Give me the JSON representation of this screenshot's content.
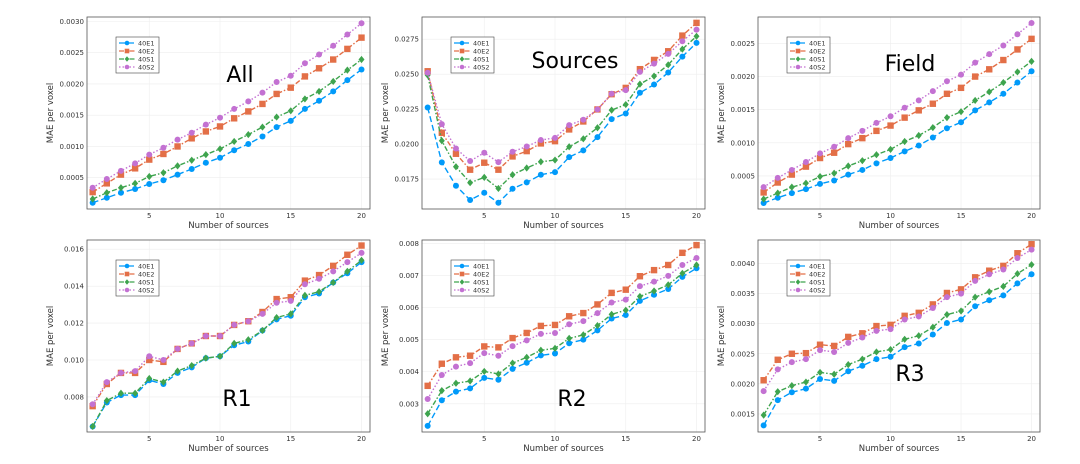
{
  "chart_data": [
    {
      "type": "line",
      "title": "All",
      "xlabel": "Number of sources",
      "ylabel": "MAE per voxel",
      "xlim": [
        0.6,
        20.6
      ],
      "ylim": [
        0,
        0.00307
      ],
      "xticks": [
        5,
        10,
        15,
        20
      ],
      "yticks": [
        0.0005,
        0.001,
        0.0015,
        0.002,
        0.0025,
        0.003
      ],
      "ytick_labels": [
        "0.0005",
        "0.0010",
        "0.0015",
        "0.0020",
        "0.0025",
        "0.0030"
      ],
      "grid": true,
      "legend_position": "top-left",
      "x": [
        1,
        2,
        3,
        4,
        5,
        6,
        7,
        8,
        9,
        10,
        11,
        12,
        13,
        14,
        15,
        16,
        17,
        18,
        19,
        20
      ],
      "series": [
        {
          "name": "40E1",
          "values": [
            0.0001,
            0.00018,
            0.00026,
            0.00032,
            0.0004,
            0.00046,
            0.00055,
            0.00064,
            0.00074,
            0.00082,
            0.00094,
            0.00104,
            0.00116,
            0.00131,
            0.00141,
            0.0016,
            0.00173,
            0.00188,
            0.00206,
            0.00223
          ]
        },
        {
          "name": "40E2",
          "values": [
            0.00027,
            0.00041,
            0.00055,
            0.00065,
            0.00079,
            0.00088,
            0.001,
            0.00113,
            0.00124,
            0.00132,
            0.00145,
            0.00156,
            0.00168,
            0.00184,
            0.00194,
            0.00212,
            0.00225,
            0.00239,
            0.00256,
            0.00274
          ]
        },
        {
          "name": "40S1",
          "values": [
            0.00016,
            0.00026,
            0.00034,
            0.00041,
            0.00052,
            0.00058,
            0.00069,
            0.00078,
            0.00087,
            0.00096,
            0.00108,
            0.00119,
            0.00131,
            0.00147,
            0.00157,
            0.00176,
            0.00188,
            0.00204,
            0.00222,
            0.00239
          ]
        },
        {
          "name": "40S2",
          "values": [
            0.00034,
            0.00048,
            0.00061,
            0.00073,
            0.00087,
            0.00098,
            0.00111,
            0.00122,
            0.00135,
            0.00146,
            0.0016,
            0.00172,
            0.00186,
            0.00203,
            0.00213,
            0.00233,
            0.00247,
            0.00261,
            0.00279,
            0.00297
          ]
        }
      ]
    },
    {
      "type": "line",
      "title": "Sources",
      "xlabel": "Number of sources",
      "ylabel": "MAE per voxel",
      "xlim": [
        0.6,
        20.6
      ],
      "ylim": [
        0.01536,
        0.02909
      ],
      "xticks": [
        5,
        10,
        15,
        20
      ],
      "yticks": [
        0.0175,
        0.02,
        0.0225,
        0.025,
        0.0275
      ],
      "ytick_labels": [
        "0.0175",
        "0.0200",
        "0.0225",
        "0.0250",
        "0.0275"
      ],
      "grid": true,
      "legend_position": "top-left",
      "x": [
        1,
        2,
        3,
        4,
        5,
        6,
        7,
        8,
        9,
        10,
        11,
        12,
        13,
        14,
        15,
        16,
        17,
        18,
        19,
        20
      ],
      "series": [
        {
          "name": "40E1",
          "values": [
            0.02262,
            0.01869,
            0.01702,
            0.016,
            0.01652,
            0.01581,
            0.01681,
            0.01726,
            0.01781,
            0.018,
            0.01907,
            0.01955,
            0.0205,
            0.02179,
            0.02219,
            0.02367,
            0.02426,
            0.02512,
            0.02626,
            0.02724
          ]
        },
        {
          "name": "40E2",
          "values": [
            0.02521,
            0.02081,
            0.01931,
            0.01817,
            0.01867,
            0.01817,
            0.01912,
            0.0195,
            0.02005,
            0.02021,
            0.02105,
            0.02162,
            0.02248,
            0.02357,
            0.02402,
            0.02536,
            0.02602,
            0.02664,
            0.02776,
            0.02867
          ]
        },
        {
          "name": "40S1",
          "values": [
            0.02493,
            0.02024,
            0.01838,
            0.01724,
            0.01762,
            0.01683,
            0.01781,
            0.01829,
            0.01874,
            0.01886,
            0.01981,
            0.02038,
            0.02117,
            0.02243,
            0.02283,
            0.02429,
            0.02486,
            0.02567,
            0.02679,
            0.02771
          ]
        },
        {
          "name": "40S2",
          "values": [
            0.0251,
            0.02143,
            0.01969,
            0.01879,
            0.01938,
            0.01871,
            0.01945,
            0.01983,
            0.02029,
            0.02045,
            0.02136,
            0.02174,
            0.02248,
            0.0236,
            0.02386,
            0.02517,
            0.02576,
            0.02645,
            0.02736,
            0.02819
          ]
        }
      ]
    },
    {
      "type": "line",
      "title": "Field",
      "xlabel": "Number of sources",
      "ylabel": "MAE per voxel",
      "xlim": [
        0.6,
        20.6
      ],
      "ylim": [
        0,
        0.0029
      ],
      "xticks": [
        5,
        10,
        15,
        20
      ],
      "yticks": [
        0.0005,
        0.001,
        0.0015,
        0.002,
        0.0025
      ],
      "ytick_labels": [
        "0.0005",
        "0.0010",
        "0.0015",
        "0.0020",
        "0.0025"
      ],
      "grid": true,
      "legend_position": "top-left",
      "x": [
        1,
        2,
        3,
        4,
        5,
        6,
        7,
        8,
        9,
        10,
        11,
        12,
        13,
        14,
        15,
        16,
        17,
        18,
        19,
        20
      ],
      "series": [
        {
          "name": "40E1",
          "values": [
            9e-05,
            0.00017,
            0.00024,
            0.0003,
            0.00038,
            0.00043,
            0.00052,
            0.00059,
            0.00069,
            0.00077,
            0.00087,
            0.00096,
            0.00108,
            0.00122,
            0.00131,
            0.00149,
            0.00161,
            0.00174,
            0.00191,
            0.00208
          ]
        },
        {
          "name": "40E2",
          "values": [
            0.00025,
            0.0004,
            0.00052,
            0.00064,
            0.00077,
            0.00085,
            0.00098,
            0.00107,
            0.00118,
            0.00126,
            0.00138,
            0.00149,
            0.00159,
            0.00174,
            0.00183,
            0.002,
            0.00211,
            0.00225,
            0.00241,
            0.00257
          ]
        },
        {
          "name": "40S1",
          "values": [
            0.00015,
            0.00024,
            0.00033,
            0.00039,
            0.00049,
            0.00054,
            0.00065,
            0.00073,
            0.00082,
            0.0009,
            0.00102,
            0.00111,
            0.00123,
            0.00138,
            0.00147,
            0.00164,
            0.00177,
            0.00191,
            0.00207,
            0.00223
          ]
        },
        {
          "name": "40S2",
          "values": [
            0.00033,
            0.00047,
            0.00059,
            0.00071,
            0.00084,
            0.00094,
            0.00107,
            0.00118,
            0.0013,
            0.0014,
            0.00153,
            0.00164,
            0.00178,
            0.00193,
            0.00203,
            0.00221,
            0.00234,
            0.00247,
            0.00264,
            0.00281
          ]
        }
      ]
    },
    {
      "type": "line",
      "title": "R1",
      "xlabel": "Number of sources",
      "ylabel": "MAE per voxel",
      "xlim": [
        0.6,
        20.6
      ],
      "ylim": [
        0.0061,
        0.0165
      ],
      "xticks": [
        5,
        10,
        15,
        20
      ],
      "yticks": [
        0.008,
        0.01,
        0.012,
        0.014,
        0.016
      ],
      "ytick_labels": [
        "0.008",
        "0.010",
        "0.012",
        "0.014",
        "0.016"
      ],
      "grid": true,
      "legend_position": "top-left",
      "x": [
        1,
        2,
        3,
        4,
        5,
        6,
        7,
        8,
        9,
        10,
        11,
        12,
        13,
        14,
        15,
        16,
        17,
        18,
        19,
        20
      ],
      "series": [
        {
          "name": "40E1",
          "values": [
            0.0064,
            0.0077,
            0.0081,
            0.0081,
            0.0089,
            0.0087,
            0.0093,
            0.0096,
            0.0101,
            0.0102,
            0.0108,
            0.011,
            0.0116,
            0.0122,
            0.0124,
            0.0134,
            0.0136,
            0.0142,
            0.0147,
            0.0153
          ]
        },
        {
          "name": "40E2",
          "values": [
            0.0075,
            0.0087,
            0.0093,
            0.0093,
            0.01,
            0.0099,
            0.0106,
            0.0109,
            0.0113,
            0.0113,
            0.0119,
            0.0121,
            0.0126,
            0.0133,
            0.0134,
            0.0143,
            0.0146,
            0.0151,
            0.0157,
            0.0162
          ]
        },
        {
          "name": "40S1",
          "values": [
            0.0064,
            0.0078,
            0.0082,
            0.0082,
            0.009,
            0.0088,
            0.0094,
            0.0097,
            0.0101,
            0.0102,
            0.0109,
            0.0111,
            0.0116,
            0.0123,
            0.0125,
            0.0135,
            0.0137,
            0.0142,
            0.0148,
            0.0154
          ]
        },
        {
          "name": "40S2",
          "values": [
            0.0076,
            0.0088,
            0.0093,
            0.0094,
            0.0102,
            0.01,
            0.0106,
            0.0109,
            0.0113,
            0.0113,
            0.0119,
            0.0121,
            0.0125,
            0.0131,
            0.0132,
            0.0141,
            0.0144,
            0.0148,
            0.0153,
            0.0158
          ]
        }
      ]
    },
    {
      "type": "line",
      "title": "R2",
      "xlabel": "Number of sources",
      "ylabel": "MAE per voxel",
      "xlim": [
        0.6,
        20.6
      ],
      "ylim": [
        0.00212,
        0.00811
      ],
      "xticks": [
        5,
        10,
        15,
        20
      ],
      "yticks": [
        0.003,
        0.004,
        0.005,
        0.006,
        0.007,
        0.008
      ],
      "ytick_labels": [
        "0.003",
        "0.004",
        "0.005",
        "0.006",
        "0.007",
        "0.008"
      ],
      "grid": true,
      "legend_position": "top-left",
      "x": [
        1,
        2,
        3,
        4,
        5,
        6,
        7,
        8,
        9,
        10,
        11,
        12,
        13,
        14,
        15,
        16,
        17,
        18,
        19,
        20
      ],
      "series": [
        {
          "name": "40E1",
          "values": [
            0.00231,
            0.00311,
            0.00338,
            0.00348,
            0.00381,
            0.00375,
            0.00409,
            0.00428,
            0.00451,
            0.00457,
            0.00489,
            0.005,
            0.00529,
            0.00566,
            0.00577,
            0.00621,
            0.0064,
            0.00658,
            0.00696,
            0.00723
          ]
        },
        {
          "name": "40E2",
          "values": [
            0.00356,
            0.00425,
            0.00445,
            0.0045,
            0.00479,
            0.00476,
            0.00505,
            0.00521,
            0.00543,
            0.00546,
            0.00573,
            0.00583,
            0.0061,
            0.00646,
            0.00656,
            0.00698,
            0.00717,
            0.00733,
            0.00771,
            0.00795
          ]
        },
        {
          "name": "40S1",
          "values": [
            0.00269,
            0.00341,
            0.00364,
            0.00371,
            0.00401,
            0.00393,
            0.00427,
            0.00445,
            0.00467,
            0.00473,
            0.00504,
            0.00515,
            0.00544,
            0.00579,
            0.00592,
            0.00635,
            0.00652,
            0.00671,
            0.00707,
            0.00733
          ]
        },
        {
          "name": "40S2",
          "values": [
            0.00315,
            0.0039,
            0.00416,
            0.00427,
            0.00458,
            0.0045,
            0.0048,
            0.00498,
            0.00518,
            0.00521,
            0.00548,
            0.00558,
            0.00583,
            0.00616,
            0.00625,
            0.00667,
            0.00681,
            0.00699,
            0.00733,
            0.00755
          ]
        }
      ]
    },
    {
      "type": "line",
      "title": "R3",
      "xlabel": "Number of sources",
      "ylabel": "MAE per voxel",
      "xlim": [
        0.6,
        20.6
      ],
      "ylim": [
        0.0012,
        0.00439
      ],
      "xticks": [
        5,
        10,
        15,
        20
      ],
      "yticks": [
        0.0015,
        0.002,
        0.0025,
        0.003,
        0.0035,
        0.004
      ],
      "ytick_labels": [
        "0.0015",
        "0.0020",
        "0.0025",
        "0.0030",
        "0.0035",
        "0.0040"
      ],
      "grid": true,
      "legend_position": "top-left",
      "x": [
        1,
        2,
        3,
        4,
        5,
        6,
        7,
        8,
        9,
        10,
        11,
        12,
        13,
        14,
        15,
        16,
        17,
        18,
        19,
        20
      ],
      "series": [
        {
          "name": "40E1",
          "values": [
            0.00131,
            0.00173,
            0.00186,
            0.00192,
            0.00208,
            0.00205,
            0.00221,
            0.0023,
            0.00241,
            0.00245,
            0.00261,
            0.00267,
            0.00282,
            0.00301,
            0.00307,
            0.00329,
            0.00339,
            0.00347,
            0.00367,
            0.00382
          ]
        },
        {
          "name": "40E2",
          "values": [
            0.00206,
            0.0024,
            0.0025,
            0.00251,
            0.00265,
            0.00263,
            0.00278,
            0.00284,
            0.00296,
            0.00298,
            0.00313,
            0.00318,
            0.00332,
            0.00351,
            0.00357,
            0.00377,
            0.00388,
            0.00396,
            0.00417,
            0.00432
          ]
        },
        {
          "name": "40S1",
          "values": [
            0.00148,
            0.00187,
            0.00197,
            0.00203,
            0.00219,
            0.00216,
            0.00232,
            0.00241,
            0.00253,
            0.00257,
            0.00274,
            0.0028,
            0.00294,
            0.00315,
            0.00321,
            0.00344,
            0.00353,
            0.00362,
            0.00383,
            0.00398
          ]
        },
        {
          "name": "40S2",
          "values": [
            0.00188,
            0.00224,
            0.00236,
            0.00241,
            0.00256,
            0.00253,
            0.00268,
            0.00277,
            0.00288,
            0.00291,
            0.00307,
            0.00312,
            0.00326,
            0.00344,
            0.0035,
            0.00371,
            0.00382,
            0.0039,
            0.00409,
            0.00423
          ]
        }
      ]
    }
  ],
  "series_styles": [
    {
      "color": "#009AFA",
      "marker": "circle",
      "line": "dash"
    },
    {
      "color": "#E36F47",
      "marker": "square",
      "line": "dashdot"
    },
    {
      "color": "#3EA44E",
      "marker": "diamond",
      "line": "dashdot"
    },
    {
      "color": "#C371D2",
      "marker": "circle",
      "line": "dot"
    }
  ]
}
